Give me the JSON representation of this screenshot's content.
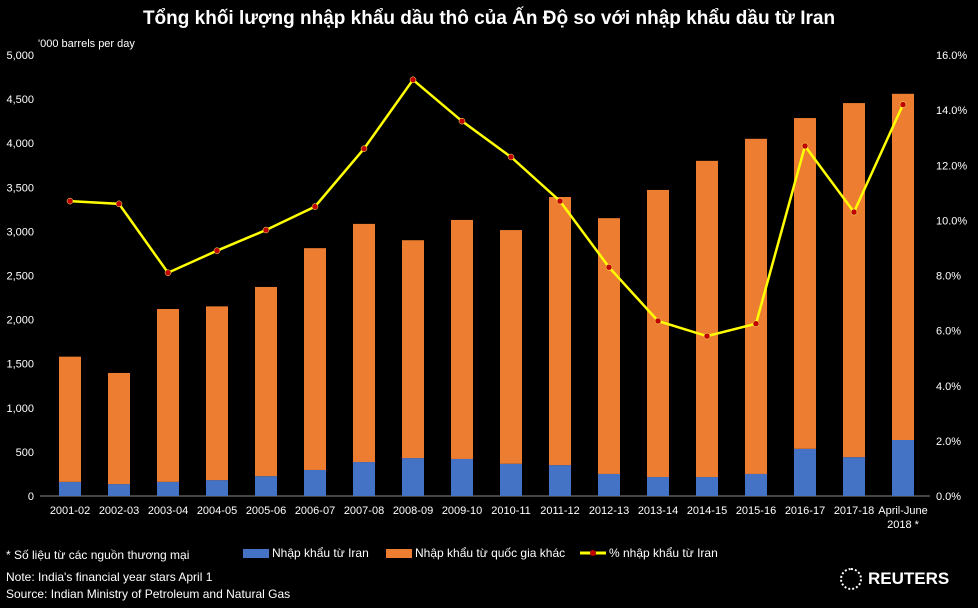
{
  "chart_data": {
    "type": "bar",
    "title": "Tổng khối lượng nhập khẩu dầu thô của Ấn Độ so với nhập khẩu dầu từ Iran",
    "ylabel": "'000 barrels per day",
    "ylim": [
      0,
      5000
    ],
    "y2lim": [
      0,
      16
    ],
    "yticks": [
      "0",
      "500",
      "1,000",
      "1,500",
      "2,000",
      "2,500",
      "3,000",
      "3,500",
      "4,000",
      "4,500",
      "5,000"
    ],
    "y2ticks": [
      "0.0%",
      "2.0%",
      "4.0%",
      "6.0%",
      "8.0%",
      "10.0%",
      "12.0%",
      "14.0%",
      "16.0%"
    ],
    "categories": [
      "2001-02",
      "2002-03",
      "2003-04",
      "2004-05",
      "2005-06",
      "2006-07",
      "2007-08",
      "2008-09",
      "2009-10",
      "2010-11",
      "2011-12",
      "2012-13",
      "2013-14",
      "2014-15",
      "2015-16",
      "2016-17",
      "2017-18",
      "April-June 2018 *"
    ],
    "series": [
      {
        "name": "Nhập khẩu từ Iran",
        "type": "bar",
        "color": "#4472c4",
        "values": [
          160,
          135,
          160,
          180,
          225,
          295,
          385,
          430,
          420,
          365,
          350,
          250,
          215,
          215,
          250,
          535,
          440,
          635
        ]
      },
      {
        "name": "Nhập khẩu từ quốc gia khác",
        "type": "bar",
        "color": "#ed7d31",
        "values": [
          1420,
          1260,
          1960,
          1970,
          2145,
          2515,
          2700,
          2470,
          2710,
          2650,
          3040,
          2900,
          3255,
          3585,
          3800,
          3750,
          4015,
          3925
        ]
      },
      {
        "name": "% nhập khẩu từ Iran",
        "type": "line",
        "axis": "right",
        "color": "#ffff00",
        "values": [
          10.7,
          10.6,
          8.1,
          8.9,
          9.65,
          10.5,
          12.6,
          15.1,
          13.6,
          12.3,
          10.7,
          8.3,
          6.35,
          5.8,
          6.25,
          12.7,
          10.3,
          14.2
        ]
      }
    ],
    "legend": "bottom"
  },
  "footnotes": {
    "star": "* Số liệu từ các nguồn thương mại",
    "note": "Note: India's financial year stars April 1",
    "source": "Source: Indian Ministry of Petroleum and Natural Gas"
  },
  "brand": "REUTERS"
}
